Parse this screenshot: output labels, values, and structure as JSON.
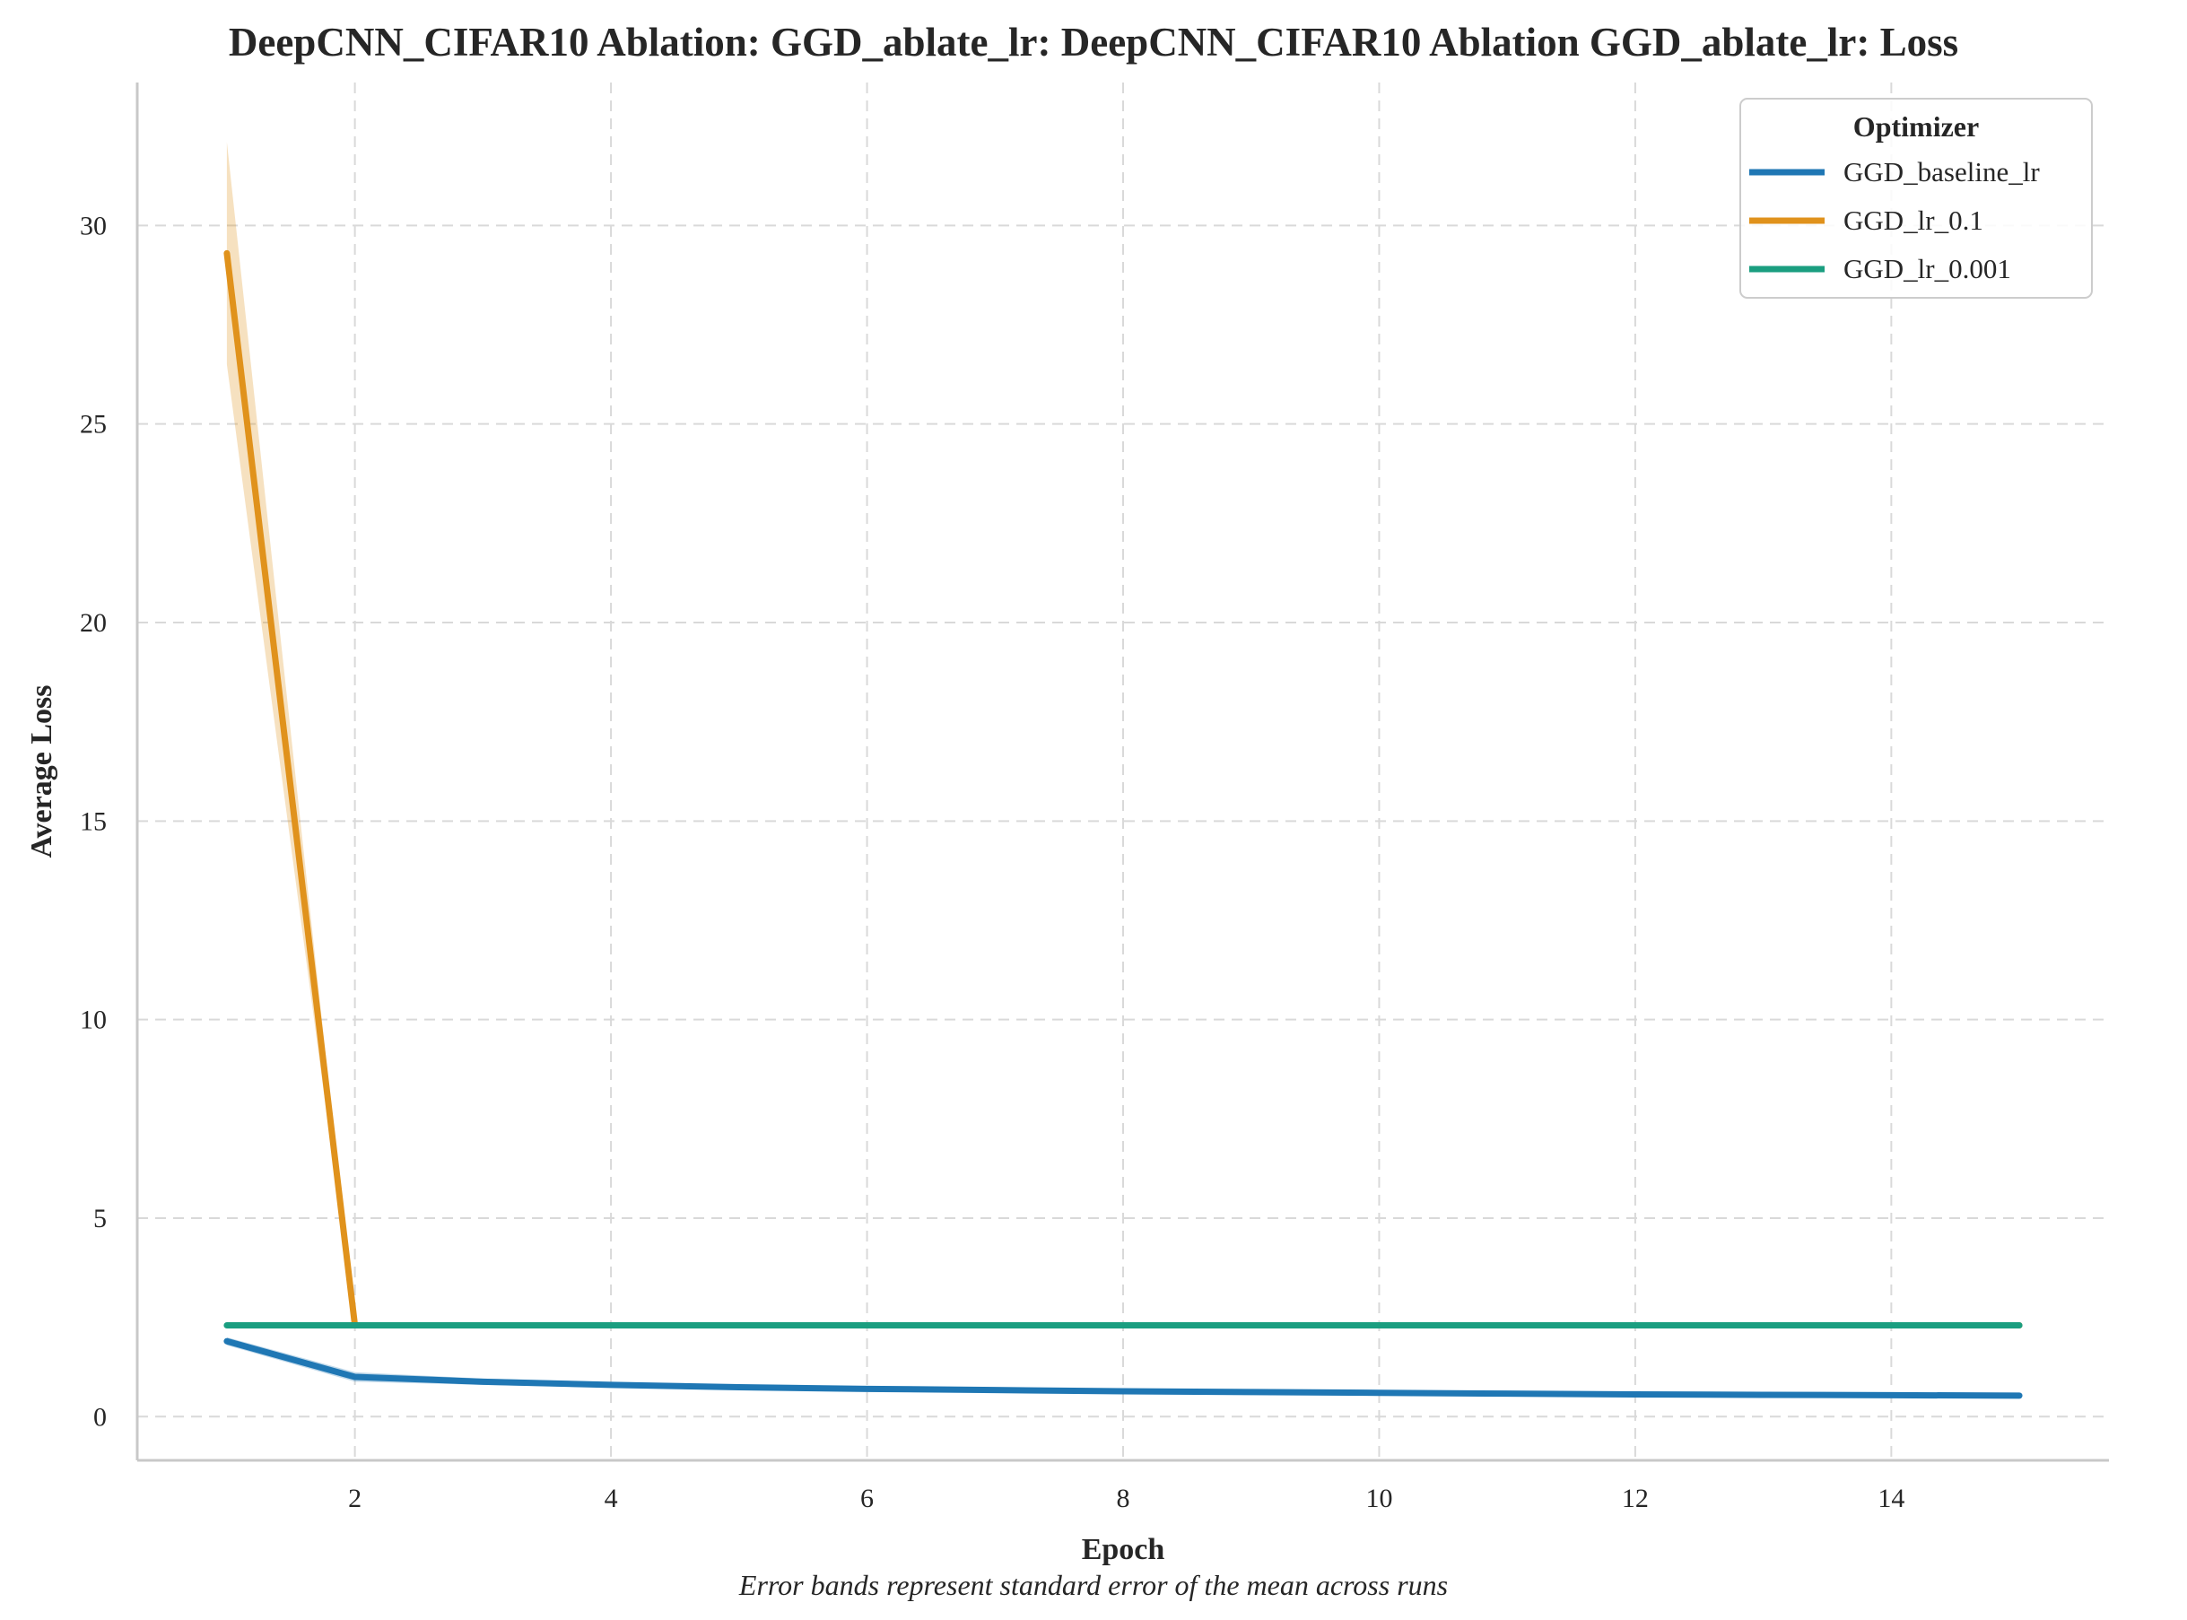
{
  "chart_data": {
    "type": "line",
    "title": "DeepCNN_CIFAR10 Ablation: GGD_ablate_lr: DeepCNN_CIFAR10 Ablation GGD_ablate_lr: Loss",
    "xlabel": "Epoch",
    "ylabel": "Average Loss",
    "footnote": "Error bands represent standard error of the mean across runs",
    "xlim": [
      0.3,
      15.7
    ],
    "ylim": [
      -1.1,
      33.6
    ],
    "xticks": [
      2,
      4,
      6,
      8,
      10,
      12,
      14
    ],
    "yticks": [
      0,
      5,
      10,
      15,
      20,
      25,
      30
    ],
    "grid": true,
    "legend": {
      "title": "Optimizer",
      "placement": "top-right"
    },
    "x": [
      1,
      2,
      3,
      4,
      5,
      6,
      7,
      8,
      9,
      10,
      11,
      12,
      13,
      14,
      15
    ],
    "series": [
      {
        "name": "GGD_baseline_lr",
        "color": "#1f77b4",
        "values": [
          1.9,
          1.0,
          0.88,
          0.8,
          0.74,
          0.7,
          0.67,
          0.64,
          0.62,
          0.6,
          0.58,
          0.56,
          0.55,
          0.54,
          0.53
        ],
        "err": [
          0.1,
          0.12,
          0.08,
          0.07,
          0.05,
          0.04,
          0.03,
          0.03,
          0.03,
          0.02,
          0.02,
          0.02,
          0.02,
          0.02,
          0.02
        ]
      },
      {
        "name": "GGD_lr_0.1",
        "color": "#e0921c",
        "values": [
          29.3,
          2.3,
          2.3,
          2.3,
          2.3,
          2.3,
          2.3,
          2.3,
          2.3,
          2.3,
          2.3,
          2.3,
          2.3,
          2.3,
          2.3
        ],
        "err": [
          2.8,
          0.02,
          0.01,
          0.01,
          0.01,
          0.01,
          0.01,
          0.01,
          0.01,
          0.01,
          0.01,
          0.01,
          0.01,
          0.01,
          0.01
        ]
      },
      {
        "name": "GGD_lr_0.001",
        "color": "#1a9e80",
        "values": [
          2.3,
          2.3,
          2.3,
          2.3,
          2.3,
          2.3,
          2.3,
          2.3,
          2.3,
          2.3,
          2.3,
          2.3,
          2.3,
          2.3,
          2.3
        ],
        "err": [
          0.01,
          0.01,
          0.01,
          0.01,
          0.01,
          0.01,
          0.01,
          0.01,
          0.01,
          0.01,
          0.01,
          0.01,
          0.01,
          0.01,
          0.01
        ]
      }
    ]
  }
}
